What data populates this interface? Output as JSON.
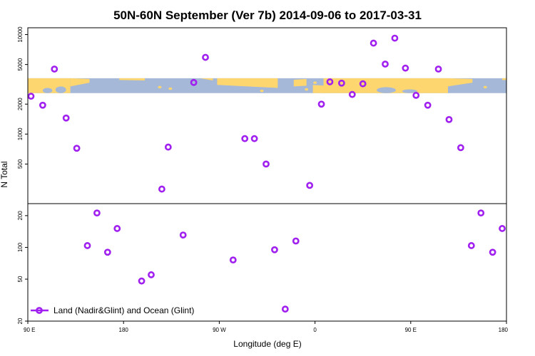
{
  "chart_data": {
    "type": "scatter",
    "title": "50N-60N September (Ver 7b)   2014-09-06 to 2017-03-31",
    "xlabel": "Longitude (deg E)",
    "ylabel": "N Total",
    "x_ticks": [
      {
        "value": 90,
        "label": "90 E"
      },
      {
        "value": 180,
        "label": "180"
      },
      {
        "value": 270,
        "label": "90 W"
      },
      {
        "value": 360,
        "label": "0"
      },
      {
        "value": 450,
        "label": "90 E"
      },
      {
        "value": 540,
        "label": "180"
      }
    ],
    "xlim": [
      90,
      540
    ],
    "top_panel": {
      "scale": "log",
      "ylim": [
        200,
        11700
      ],
      "y_ticks": [
        "500",
        "1000",
        "2000",
        "5000",
        "10000"
      ],
      "map_band": {
        "y_range": [
          2580,
          3640
        ],
        "ocean_color": "#a5b8d8",
        "land_color": "#fdd670"
      }
    },
    "bottom_panel": {
      "scale": "log",
      "ylim": [
        20,
        260
      ],
      "y_ticks": [
        "20",
        "50",
        "100",
        "200"
      ]
    },
    "series": [
      {
        "name": "Land (Nadir&Glint) and Ocean (Glint)",
        "color": "#a020f0",
        "top_points": [
          {
            "x": 93,
            "y": 2400
          },
          {
            "x": 104,
            "y": 1950
          },
          {
            "x": 115,
            "y": 4500
          },
          {
            "x": 126,
            "y": 1450
          },
          {
            "x": 136,
            "y": 720
          },
          {
            "x": 216,
            "y": 280
          },
          {
            "x": 222,
            "y": 740
          },
          {
            "x": 246,
            "y": 3300
          },
          {
            "x": 257,
            "y": 5900
          },
          {
            "x": 294,
            "y": 900
          },
          {
            "x": 303,
            "y": 900
          },
          {
            "x": 314,
            "y": 500
          },
          {
            "x": 355,
            "y": 305
          },
          {
            "x": 366,
            "y": 2000
          },
          {
            "x": 374,
            "y": 3350
          },
          {
            "x": 385,
            "y": 3250
          },
          {
            "x": 395,
            "y": 2500
          },
          {
            "x": 405,
            "y": 3200
          },
          {
            "x": 415,
            "y": 8200
          },
          {
            "x": 426,
            "y": 5050
          },
          {
            "x": 435,
            "y": 9200
          },
          {
            "x": 445,
            "y": 4600
          },
          {
            "x": 455,
            "y": 2450
          },
          {
            "x": 466,
            "y": 1950
          },
          {
            "x": 476,
            "y": 4500
          },
          {
            "x": 486,
            "y": 1400
          },
          {
            "x": 497,
            "y": 730
          }
        ],
        "bottom_points": [
          {
            "x": 146,
            "y": 104
          },
          {
            "x": 155,
            "y": 212
          },
          {
            "x": 165,
            "y": 90
          },
          {
            "x": 174,
            "y": 151
          },
          {
            "x": 197,
            "y": 48
          },
          {
            "x": 206,
            "y": 55
          },
          {
            "x": 236,
            "y": 131
          },
          {
            "x": 283,
            "y": 76
          },
          {
            "x": 322,
            "y": 95
          },
          {
            "x": 332,
            "y": 26
          },
          {
            "x": 342,
            "y": 115
          },
          {
            "x": 507,
            "y": 104
          },
          {
            "x": 516,
            "y": 212
          },
          {
            "x": 527,
            "y": 90
          },
          {
            "x": 536,
            "y": 151
          }
        ]
      }
    ],
    "legend": {
      "position": "bottom-left",
      "label": "Land (Nadir&Glint) and Ocean (Glint)"
    }
  }
}
